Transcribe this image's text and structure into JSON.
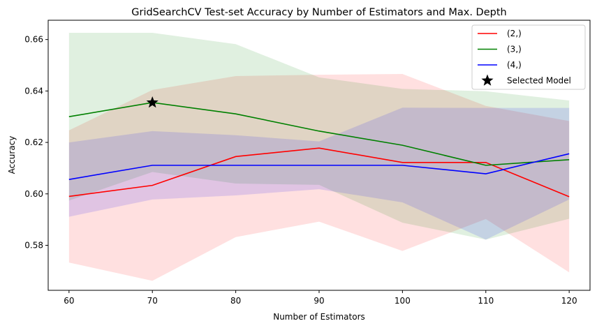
{
  "chart_data": {
    "type": "line",
    "title": "GridSearchCV Test-set Accuracy by Number of Estimators and Max. Depth",
    "xlabel": "Number of Estimators",
    "ylabel": "Accuracy",
    "x": [
      60,
      70,
      80,
      90,
      100,
      110,
      120
    ],
    "xlim": [
      57.5,
      122.5
    ],
    "ylim": [
      0.5625,
      0.6675
    ],
    "xticks": [
      "60",
      "70",
      "80",
      "90",
      "100",
      "110",
      "120"
    ],
    "yticks": [
      "0.58",
      "0.60",
      "0.62",
      "0.64",
      "0.66"
    ],
    "ytick_values": [
      0.58,
      0.6,
      0.62,
      0.64,
      0.66
    ],
    "grid": false,
    "legend_position": "top-right",
    "series": [
      {
        "name": "(2,)",
        "color": "#ff0000",
        "values": [
          0.599,
          0.6033,
          0.6145,
          0.6178,
          0.6122,
          0.6122,
          0.5989
        ],
        "lower": [
          0.5733,
          0.5662,
          0.5832,
          0.5892,
          0.5778,
          0.5902,
          0.5695
        ],
        "upper": [
          0.6247,
          0.6404,
          0.6458,
          0.6463,
          0.6466,
          0.6342,
          0.6283
        ]
      },
      {
        "name": "(3,)",
        "color": "#008000",
        "values": [
          0.63,
          0.6355,
          0.6311,
          0.6244,
          0.6189,
          0.6111,
          0.6133
        ],
        "lower": [
          0.5974,
          0.6085,
          0.604,
          0.6035,
          0.5888,
          0.5822,
          0.5903
        ],
        "upper": [
          0.6626,
          0.6626,
          0.6582,
          0.6453,
          0.6408,
          0.6399,
          0.6363
        ]
      },
      {
        "name": "(4,)",
        "color": "#0000ff",
        "values": [
          0.6056,
          0.6111,
          0.6111,
          0.6111,
          0.6111,
          0.6078,
          0.6156
        ],
        "lower": [
          0.5911,
          0.5978,
          0.5994,
          0.6018,
          0.5967,
          0.5822,
          0.5978
        ],
        "upper": [
          0.62,
          0.6244,
          0.6228,
          0.6204,
          0.6335,
          0.6334,
          0.6334
        ]
      }
    ],
    "selected_model": {
      "name": "Selected Model",
      "x": 70,
      "y": 0.6355
    }
  }
}
